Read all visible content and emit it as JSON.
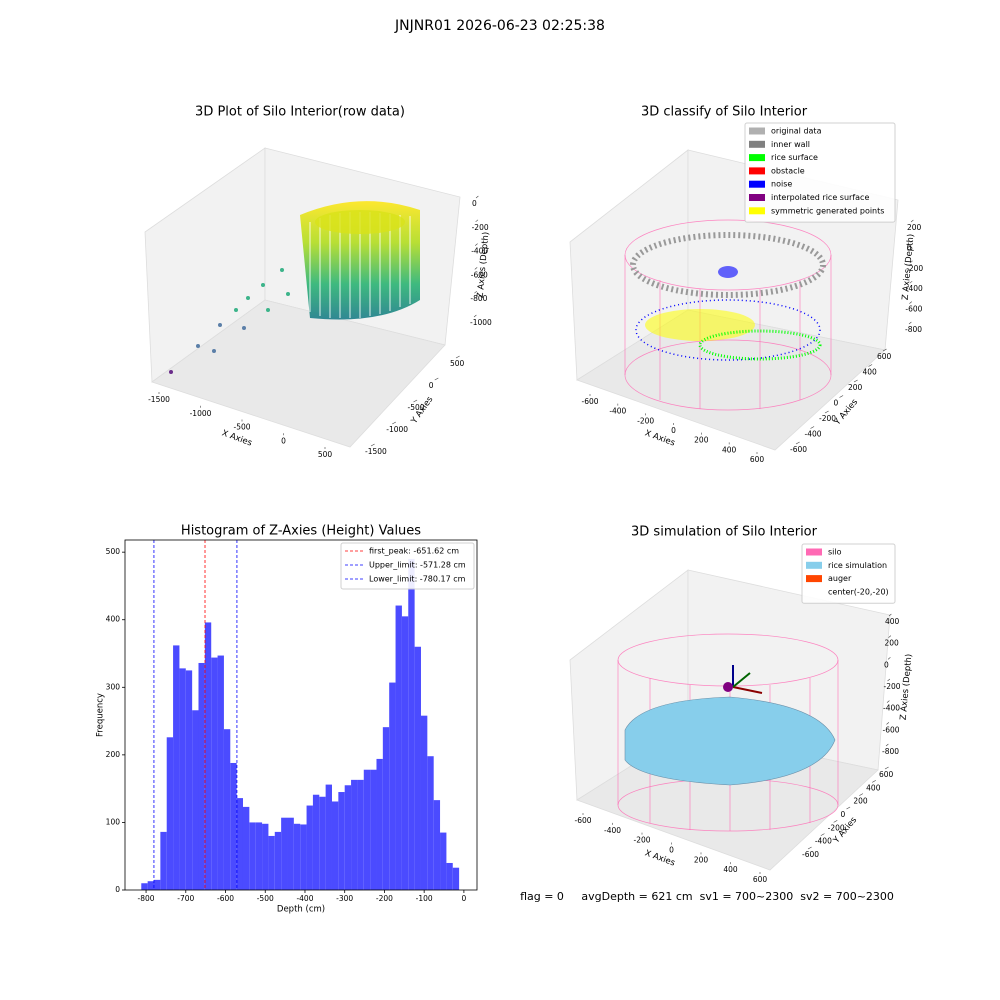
{
  "title": "JNJNR01 2026-06-23 02:25:38",
  "footer": "flag = 0     avgDepth = 621 cm  sv1 = 700~2300  sv2 = 700~2300",
  "chart_data": [
    {
      "type": "scatter3d",
      "title": "3D Plot of Silo Interior(row data)",
      "xlabel": "X Axies",
      "ylabel": "Y Axies",
      "zlabel": "Z Axies (Depth)",
      "xticks": [
        -1500,
        -1000,
        -500,
        0,
        500
      ],
      "yticks": [
        -1500,
        -1000,
        -500,
        0,
        500
      ],
      "zticks": [
        0,
        -200,
        -400,
        -600,
        -800,
        -1000
      ]
    },
    {
      "type": "scatter3d",
      "title": "3D classify of Silo Interior",
      "xlabel": "X Axies",
      "ylabel": "Y Axies",
      "zlabel": "Z Axies (Depth)",
      "xticks": [
        -600,
        -400,
        -200,
        0,
        200,
        400,
        600
      ],
      "yticks": [
        -600,
        -400,
        -200,
        0,
        200,
        400,
        600
      ],
      "zticks": [
        200,
        0,
        -200,
        -400,
        -600,
        -800
      ],
      "legend": [
        {
          "name": "original data",
          "color": "#b0b0b0"
        },
        {
          "name": "inner wall",
          "color": "#808080"
        },
        {
          "name": "rice surface",
          "color": "#00ff00"
        },
        {
          "name": "obstacle",
          "color": "#ff0000"
        },
        {
          "name": "noise",
          "color": "#0000ff"
        },
        {
          "name": "interpolated rice surface",
          "color": "#800080"
        },
        {
          "name": "symmetric generated points",
          "color": "#ffff00"
        }
      ]
    },
    {
      "type": "histogram",
      "title": "Histogram of Z-Axies (Height) Values",
      "xlabel": "Depth (cm)",
      "ylabel": "Frequency",
      "color": "#4b4bff",
      "bins": [
        -812,
        -796,
        -780,
        -764,
        -748,
        -732,
        -716,
        -700,
        -684,
        -668,
        -652,
        -636,
        -620,
        -604,
        -588,
        -572,
        -556,
        -540,
        -524,
        -508,
        -492,
        -476,
        -460,
        -444,
        -428,
        -412,
        -396,
        -380,
        -364,
        -348,
        -332,
        -316,
        -300,
        -284,
        -268,
        -252,
        -236,
        -220,
        -204,
        -188,
        -172,
        -156,
        -140,
        -124,
        -108,
        -92,
        -76,
        -60,
        -44,
        -28,
        -12
      ],
      "counts": [
        10,
        13,
        15,
        86,
        226,
        362,
        328,
        325,
        266,
        336,
        396,
        344,
        347,
        238,
        188,
        136,
        123,
        100,
        100,
        98,
        80,
        86,
        107,
        107,
        98,
        97,
        125,
        141,
        138,
        156,
        131,
        145,
        155,
        163,
        163,
        178,
        178,
        194,
        241,
        307,
        421,
        405,
        490,
        360,
        258,
        198,
        133,
        85,
        40,
        33
      ],
      "xlim": [
        -853,
        33
      ],
      "ylim": [
        0,
        518
      ],
      "xticks": [
        -800,
        -700,
        -600,
        -500,
        -400,
        -300,
        -200,
        -100,
        0
      ],
      "yticks": [
        0,
        100,
        200,
        300,
        400,
        500
      ],
      "lines": [
        {
          "value": -651.62,
          "label": "first_peak: -651.62 cm",
          "color": "#ff0000"
        },
        {
          "value": -571.28,
          "label": "Upper_limit: -571.28 cm",
          "color": "#0000ff"
        },
        {
          "value": -780.17,
          "label": "Lower_limit: -780.17 cm",
          "color": "#0000ff"
        }
      ]
    },
    {
      "type": "surface3d",
      "title": "3D simulation of Silo Interior",
      "xlabel": "X Axies",
      "ylabel": "Y Axies",
      "zlabel": "Z Axies (Depth)",
      "xticks": [
        -600,
        -400,
        -200,
        0,
        200,
        400,
        600
      ],
      "yticks": [
        -600,
        -400,
        -200,
        0,
        200,
        400,
        600
      ],
      "zticks": [
        400,
        200,
        0,
        -200,
        -400,
        -600,
        -800
      ],
      "legend": [
        {
          "name": "silo",
          "color": "#ff69b4"
        },
        {
          "name": "rice simulation",
          "color": "#87ceeb"
        },
        {
          "name": "auger",
          "color": "#ff4500"
        },
        {
          "name": "center(-20,-20)"
        }
      ]
    }
  ]
}
